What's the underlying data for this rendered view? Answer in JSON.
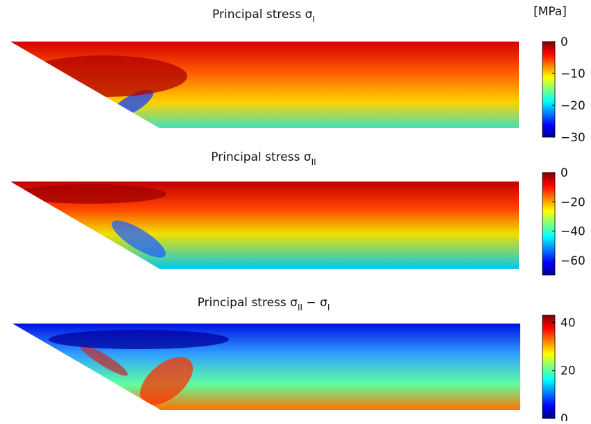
{
  "chart_data": [
    {
      "type": "heatmap",
      "title_parts": [
        "Principal stress σ",
        "I"
      ],
      "colorbar_label": "[MPa]",
      "clim": [
        -30,
        0
      ],
      "cticks": [
        {
          "value": 0,
          "label": "0"
        },
        {
          "value": -10,
          "label": "−10"
        },
        {
          "value": -20,
          "label": "−20"
        },
        {
          "value": -30,
          "label": "−30"
        }
      ]
    },
    {
      "type": "heatmap",
      "title_parts": [
        "Principal stress σ",
        "II"
      ],
      "clim": [
        -70,
        0
      ],
      "cticks": [
        {
          "value": 0,
          "label": "0"
        },
        {
          "value": -20,
          "label": "−20"
        },
        {
          "value": -40,
          "label": "−40"
        },
        {
          "value": -60,
          "label": "−60"
        }
      ]
    },
    {
      "type": "heatmap",
      "title_parts": [
        "Principal stress σ",
        "II",
        " − σ",
        "I"
      ],
      "clim": [
        0,
        43
      ],
      "cticks": [
        0,
        20,
        40
      ]
    }
  ]
}
